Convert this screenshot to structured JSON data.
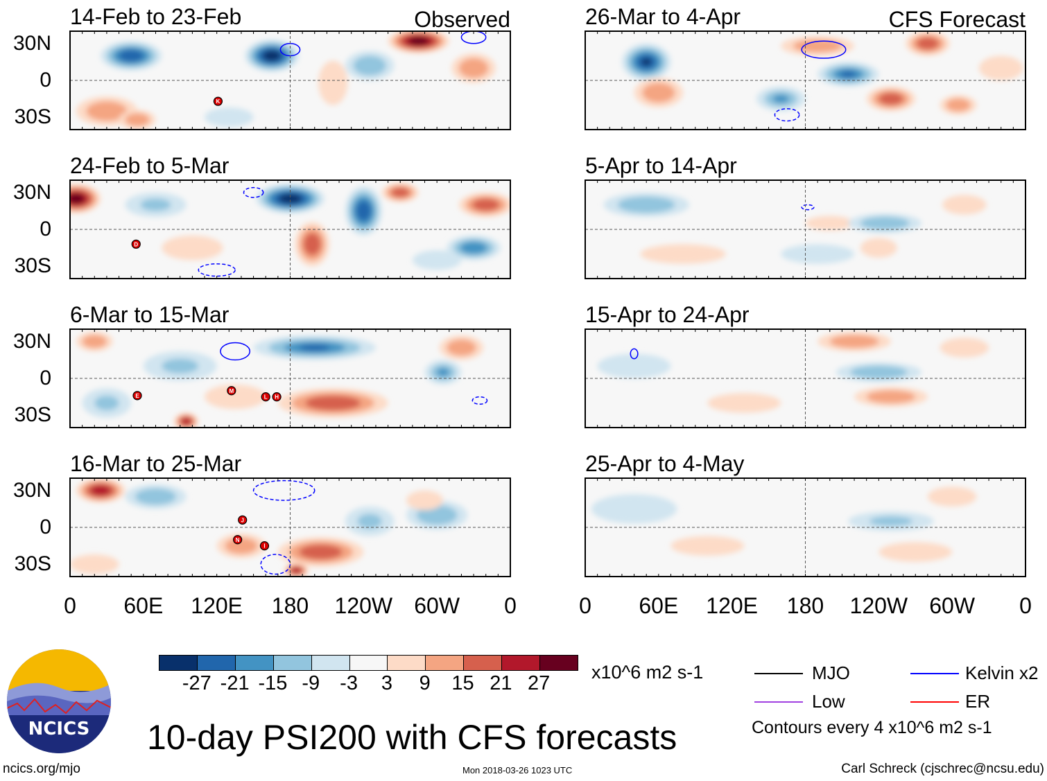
{
  "colorbar": {
    "colors": [
      "#08306b",
      "#2166ac",
      "#4393c3",
      "#92c5de",
      "#d1e5f0",
      "#f7f7f7",
      "#fddbc7",
      "#f4a582",
      "#d6604d",
      "#b2182b",
      "#67001f"
    ],
    "tick_labels": [
      "-27",
      "-21",
      "-15",
      "-9",
      "-3",
      "3",
      "9",
      "15",
      "21",
      "27"
    ],
    "units": "x10^6 m2 s-1"
  },
  "axes": {
    "y_labels": [
      "30N",
      "0",
      "30S"
    ],
    "x_labels": [
      "0",
      "60E",
      "120E",
      "180",
      "120W",
      "60W",
      "0"
    ]
  },
  "legend": {
    "items": [
      {
        "label": "MJO",
        "color": "#000000"
      },
      {
        "label": "Kelvin x2",
        "color": "#0000ff"
      },
      {
        "label": "Low",
        "color": "#a040e0"
      },
      {
        "label": "ER",
        "color": "#ff0000"
      }
    ],
    "contour_note": "Contours every 4 x10^6 m2 s-1"
  },
  "title": "10-day PSI200 with CFS forecasts",
  "logo_text": "NCICS",
  "footer": {
    "url": "ncics.org/mjo",
    "timestamp": "Mon 2018-03-26 1023 UTC",
    "author": "Carl Schreck (cjschrec@ncsu.edu)"
  },
  "chart_data": {
    "type": "heatmap",
    "lon_range": [
      0,
      360
    ],
    "lat_range": [
      -40,
      40
    ],
    "panels": [
      {
        "title": "14-Feb to 23-Feb",
        "label": "Observed",
        "anomalies": [
          [
            50,
            20,
            -24,
            25,
            12
          ],
          [
            165,
            20,
            -30,
            22,
            13
          ],
          [
            285,
            32,
            30,
            25,
            10
          ],
          [
            330,
            10,
            15,
            18,
            12
          ],
          [
            215,
            -2,
            9,
            12,
            18
          ],
          [
            245,
            12,
            -12,
            20,
            12
          ],
          [
            30,
            -25,
            12,
            25,
            12
          ],
          [
            55,
            -32,
            15,
            15,
            8
          ],
          [
            130,
            -30,
            -6,
            20,
            8
          ]
        ],
        "storms": [
          {
            "name": "K",
            "lon": 121,
            "lat": -17
          }
        ],
        "contours": [
          [
            180,
            25,
            8,
            5,
            "Kelvin"
          ],
          [
            330,
            35,
            10,
            5,
            "Kelvin"
          ]
        ]
      },
      {
        "title": "24-Feb to 5-Mar",
        "label": "",
        "anomalies": [
          [
            5,
            25,
            30,
            20,
            12
          ],
          [
            180,
            25,
            -30,
            28,
            12
          ],
          [
            240,
            15,
            -24,
            15,
            20
          ],
          [
            198,
            -12,
            21,
            14,
            18
          ],
          [
            340,
            20,
            21,
            22,
            10
          ],
          [
            330,
            -15,
            -18,
            22,
            10
          ],
          [
            270,
            30,
            21,
            15,
            8
          ],
          [
            100,
            -15,
            9,
            25,
            10
          ],
          [
            70,
            20,
            -9,
            25,
            10
          ],
          [
            300,
            -25,
            -6,
            20,
            8
          ]
        ],
        "storms": [
          {
            "name": "D",
            "lon": 54,
            "lat": -12
          }
        ],
        "contours": [
          [
            150,
            30,
            8,
            4,
            "Kelvin"
          ],
          [
            120,
            -33,
            15,
            5,
            "Kelvin"
          ]
        ]
      },
      {
        "title": "6-Mar to 15-Mar",
        "label": "",
        "anomalies": [
          [
            200,
            25,
            -21,
            50,
            10
          ],
          [
            215,
            -20,
            21,
            45,
            12
          ],
          [
            95,
            -35,
            27,
            10,
            7
          ],
          [
            320,
            25,
            15,
            18,
            10
          ],
          [
            30,
            -20,
            -9,
            20,
            12
          ],
          [
            135,
            -15,
            9,
            25,
            10
          ],
          [
            305,
            5,
            -15,
            15,
            10
          ],
          [
            20,
            30,
            15,
            15,
            8
          ],
          [
            90,
            10,
            -9,
            30,
            12
          ]
        ],
        "storms": [
          {
            "name": "E",
            "lon": 55,
            "lat": -14
          },
          {
            "name": "M",
            "lon": 132,
            "lat": -10
          },
          {
            "name": "L",
            "lon": 160,
            "lat": -15
          },
          {
            "name": "H",
            "lon": 169,
            "lat": -15
          }
        ],
        "contours": [
          [
            135,
            22,
            12,
            7,
            "Kelvin"
          ],
          [
            335,
            -18,
            6,
            3,
            "Kelvin"
          ]
        ]
      },
      {
        "title": "16-Mar to 25-Mar",
        "label": "",
        "anomalies": [
          [
            25,
            30,
            24,
            20,
            10
          ],
          [
            70,
            25,
            -12,
            25,
            10
          ],
          [
            205,
            -20,
            18,
            35,
            12
          ],
          [
            185,
            -35,
            27,
            10,
            6
          ],
          [
            300,
            10,
            -12,
            25,
            12
          ],
          [
            245,
            5,
            -9,
            20,
            12
          ],
          [
            290,
            22,
            9,
            15,
            8
          ],
          [
            140,
            -15,
            12,
            20,
            10
          ],
          [
            20,
            -30,
            9,
            20,
            8
          ]
        ],
        "storms": [
          {
            "name": "J",
            "lon": 141,
            "lat": 6
          },
          {
            "name": "N",
            "lon": 137,
            "lat": -10
          },
          {
            "name": "I",
            "lon": 159,
            "lat": -15
          }
        ],
        "contours": [
          [
            175,
            30,
            25,
            8,
            "Kelvin"
          ],
          [
            168,
            -30,
            12,
            8,
            "Kelvin"
          ]
        ]
      },
      {
        "title": "26-Mar to 4-Apr",
        "label": "CFS Forecast",
        "anomalies": [
          [
            50,
            15,
            -27,
            20,
            15
          ],
          [
            190,
            28,
            15,
            30,
            8
          ],
          [
            215,
            5,
            -21,
            25,
            10
          ],
          [
            280,
            30,
            21,
            18,
            10
          ],
          [
            250,
            -15,
            21,
            20,
            10
          ],
          [
            60,
            -10,
            15,
            20,
            12
          ],
          [
            160,
            -15,
            -15,
            20,
            10
          ],
          [
            340,
            10,
            9,
            18,
            10
          ],
          [
            305,
            -20,
            15,
            15,
            8
          ]
        ],
        "storms": [],
        "contours": [
          [
            195,
            25,
            18,
            7,
            "Kelvin"
          ],
          [
            165,
            -28,
            10,
            5,
            "Kelvin"
          ]
        ]
      },
      {
        "title": "5-Apr to 14-Apr",
        "label": "",
        "anomalies": [
          [
            50,
            20,
            -12,
            35,
            10
          ],
          [
            200,
            5,
            9,
            20,
            6
          ],
          [
            245,
            5,
            -12,
            30,
            8
          ],
          [
            240,
            -15,
            9,
            15,
            8
          ],
          [
            310,
            20,
            9,
            18,
            8
          ],
          [
            80,
            -20,
            6,
            35,
            8
          ],
          [
            190,
            -20,
            -6,
            30,
            8
          ]
        ],
        "storms": [],
        "contours": [
          [
            182,
            18,
            5,
            2,
            "Kelvin"
          ]
        ]
      },
      {
        "title": "15-Apr to 24-Apr",
        "label": "",
        "anomalies": [
          [
            220,
            30,
            12,
            30,
            8
          ],
          [
            240,
            5,
            -12,
            35,
            8
          ],
          [
            250,
            -15,
            12,
            30,
            8
          ],
          [
            310,
            25,
            6,
            20,
            8
          ],
          [
            40,
            10,
            -6,
            30,
            10
          ],
          [
            130,
            -20,
            6,
            30,
            8
          ]
        ],
        "storms": [],
        "contours": [
          [
            40,
            20,
            3,
            4,
            "Kelvin"
          ]
        ]
      },
      {
        "title": "25-Apr to 4-May",
        "label": "",
        "anomalies": [
          [
            40,
            15,
            -6,
            35,
            12
          ],
          [
            250,
            5,
            -9,
            35,
            8
          ],
          [
            270,
            -20,
            9,
            30,
            8
          ],
          [
            100,
            -15,
            6,
            30,
            8
          ],
          [
            300,
            25,
            6,
            20,
            8
          ]
        ],
        "storms": [],
        "contours": []
      }
    ]
  }
}
